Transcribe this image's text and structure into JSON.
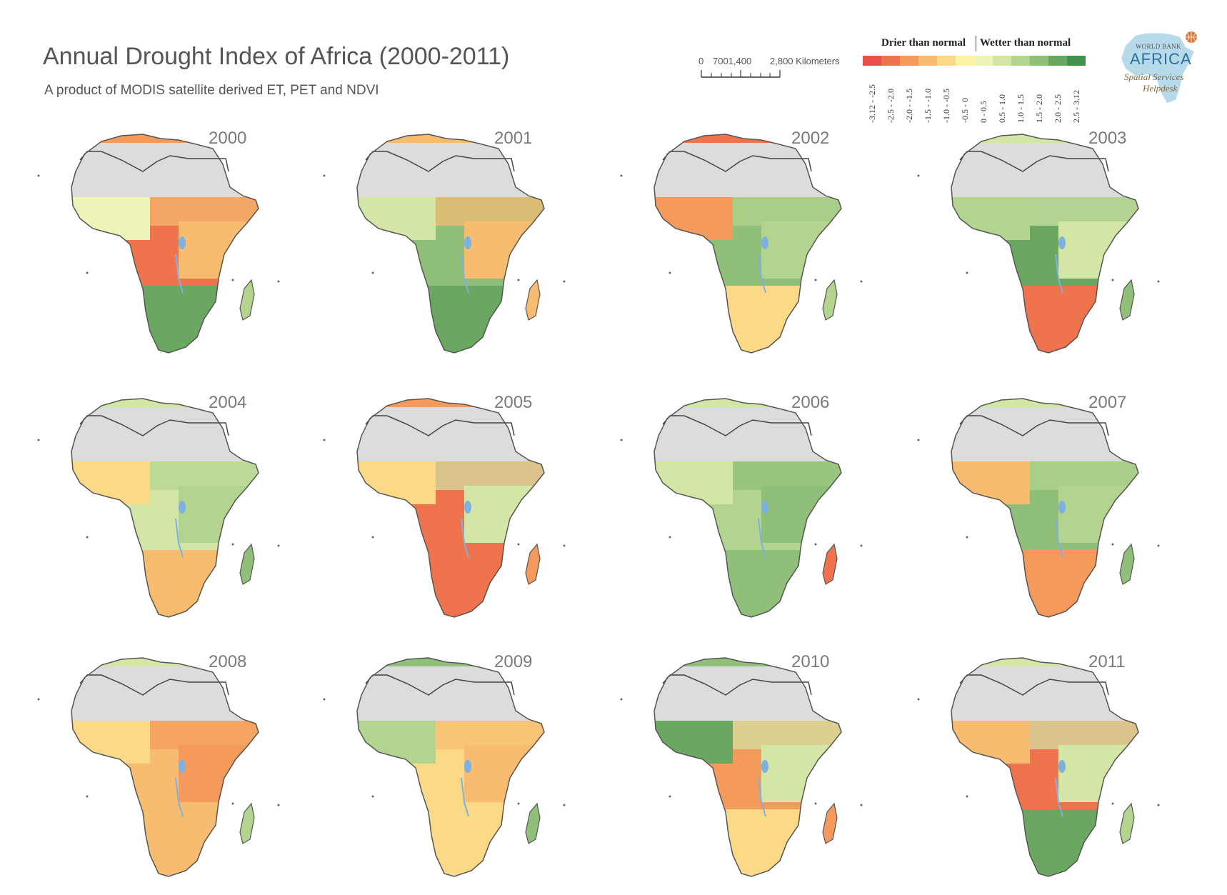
{
  "header": {
    "title": "Annual Drought Index of Africa (2000-2011)",
    "subtitle": "A product of MODIS satellite derived ET, PET and NDVI"
  },
  "scale_bar": {
    "label_0": "0",
    "label_1": "7001,400",
    "label_2": "2,800 Kilometers"
  },
  "legend": {
    "drier_label": "Drier than normal",
    "wetter_label": "Wetter than normal",
    "classes": [
      {
        "label": "-3.12 - -2.5",
        "color": "#e8514a"
      },
      {
        "label": "-2.5 - -2.0",
        "color": "#ef744d"
      },
      {
        "label": "-2.0 - -1.5",
        "color": "#f39a5c"
      },
      {
        "label": "-1.5 - -1.0",
        "color": "#f7bc70"
      },
      {
        "label": "-1.0 - -0.5",
        "color": "#fbd987"
      },
      {
        "label": "-0.5 - 0",
        "color": "#fdf3a3"
      },
      {
        "label": "0 - 0.5",
        "color": "#eef3b8"
      },
      {
        "label": "0.5 - 1.0",
        "color": "#d3e6a6"
      },
      {
        "label": "1.0 - 1.5",
        "color": "#b2d48f"
      },
      {
        "label": "1.5 - 2.0",
        "color": "#8fbf78"
      },
      {
        "label": "2.0 - 2.5",
        "color": "#6aa862"
      },
      {
        "label": "2.5 - 3.12",
        "color": "#44904d"
      }
    ]
  },
  "logo": {
    "line1": "WORLD BANK",
    "line2": "AFRICA",
    "line3": "Spatial Services",
    "line4": "Helpdesk"
  },
  "maps": [
    {
      "year": "2000",
      "north": "#f39a5c",
      "west": "#eef3b8",
      "central": "#ef744d",
      "east": "#f7bc70",
      "south": "#6aa862",
      "madagascar": "#b2d48f"
    },
    {
      "year": "2001",
      "north": "#f7bc70",
      "west": "#d3e6a6",
      "central": "#8fbf78",
      "east": "#f7bc70",
      "south": "#6aa862",
      "madagascar": "#f7bc70"
    },
    {
      "year": "2002",
      "north": "#ef744d",
      "west": "#f39a5c",
      "central": "#8fbf78",
      "east": "#b2d48f",
      "south": "#fbd987",
      "madagascar": "#b2d48f"
    },
    {
      "year": "2003",
      "north": "#d3e6a6",
      "west": "#b2d48f",
      "central": "#6aa862",
      "east": "#d3e6a6",
      "south": "#ef744d",
      "madagascar": "#8fbf78"
    },
    {
      "year": "2004",
      "north": "#d3e6a6",
      "west": "#fbd987",
      "central": "#d3e6a6",
      "east": "#b2d48f",
      "south": "#f7bc70",
      "madagascar": "#8fbf78"
    },
    {
      "year": "2005",
      "north": "#f39a5c",
      "west": "#fbd987",
      "central": "#ef744d",
      "east": "#d3e6a6",
      "south": "#ef744d",
      "madagascar": "#f39a5c"
    },
    {
      "year": "2006",
      "north": "#d3e6a6",
      "west": "#d3e6a6",
      "central": "#b2d48f",
      "east": "#8fbf78",
      "south": "#8fbf78",
      "madagascar": "#ef744d"
    },
    {
      "year": "2007",
      "north": "#d3e6a6",
      "west": "#f7bc70",
      "central": "#8fbf78",
      "east": "#b2d48f",
      "south": "#f39a5c",
      "madagascar": "#8fbf78"
    },
    {
      "year": "2008",
      "north": "#d3e6a6",
      "west": "#fbd987",
      "central": "#f7bc70",
      "east": "#f39a5c",
      "south": "#f7bc70",
      "madagascar": "#b2d48f"
    },
    {
      "year": "2009",
      "north": "#8fbf78",
      "west": "#b2d48f",
      "central": "#fbd987",
      "east": "#f7bc70",
      "south": "#fbd987",
      "madagascar": "#8fbf78"
    },
    {
      "year": "2010",
      "north": "#8fbf78",
      "west": "#6aa862",
      "central": "#f39a5c",
      "east": "#d3e6a6",
      "south": "#fbd987",
      "madagascar": "#f39a5c"
    },
    {
      "year": "2011",
      "north": "#d3e6a6",
      "west": "#f7bc70",
      "central": "#ef744d",
      "east": "#d3e6a6",
      "south": "#6aa862",
      "madagascar": "#b2d48f"
    }
  ]
}
